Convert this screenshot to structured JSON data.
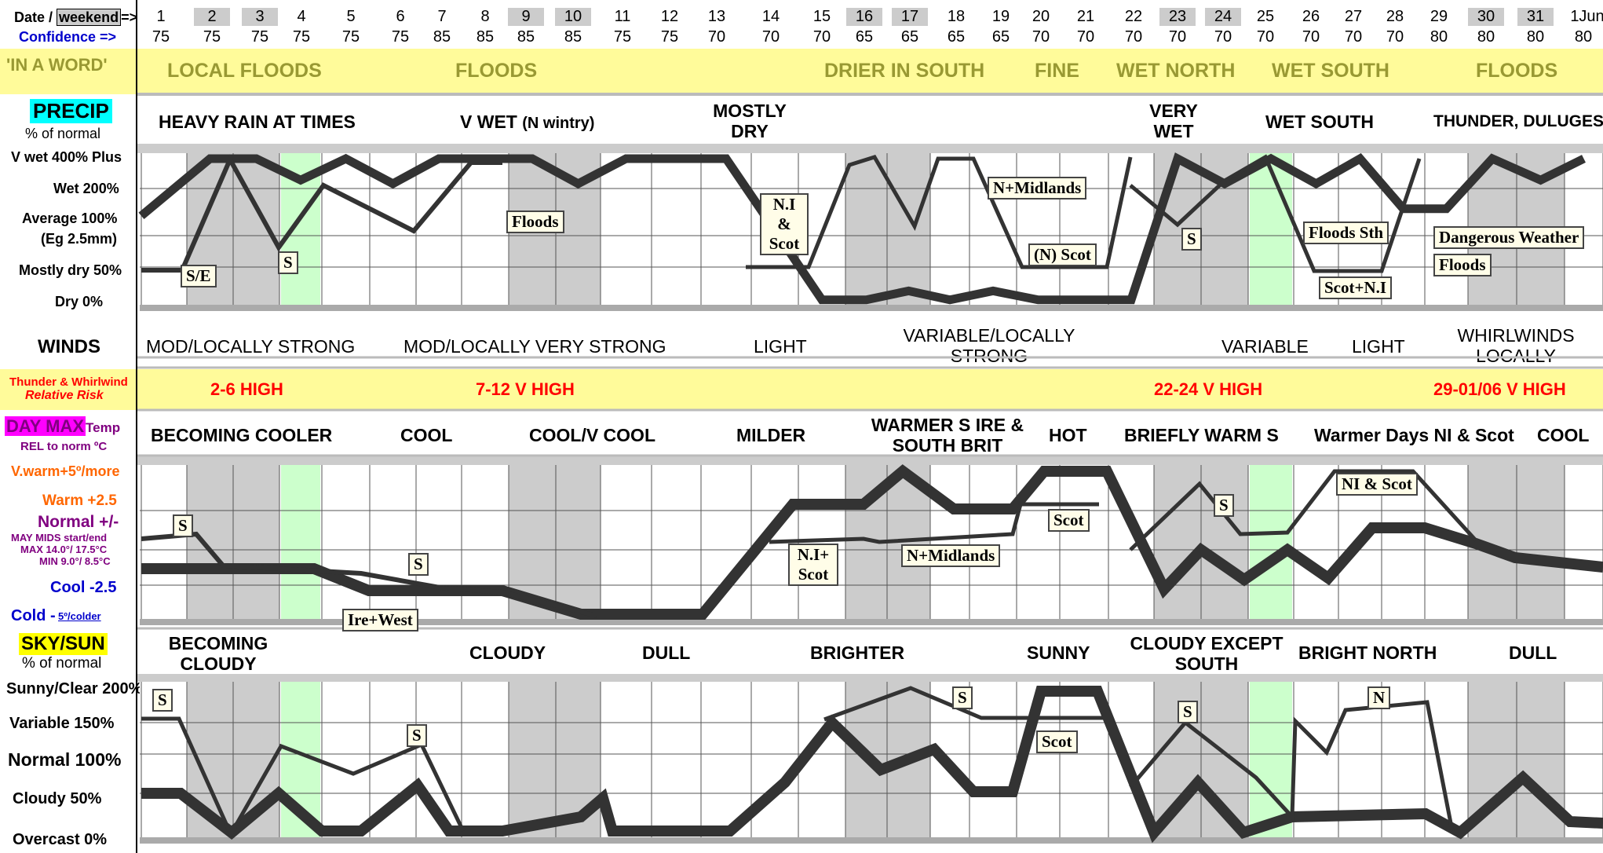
{
  "header": {
    "date_label": "Date / ",
    "weekend_label": "weekend",
    "date_arrow": "=>",
    "confidence_label": "Confidence =>",
    "dates": [
      "1",
      "2",
      "3",
      "4",
      "5",
      "6",
      "7",
      "8",
      "9",
      "10",
      "11",
      "12",
      "13",
      "14",
      "15",
      "16",
      "17",
      "18",
      "19",
      "20",
      "21",
      "22",
      "23",
      "24",
      "25",
      "26",
      "27",
      "28",
      "29",
      "30",
      "31",
      "1Jun"
    ],
    "weekend_dates": [
      "2",
      "3",
      "9",
      "10",
      "16",
      "17",
      "23",
      "24",
      "30",
      "31"
    ],
    "confidence": [
      "75",
      "75",
      "75",
      "75",
      "75",
      "75",
      "85",
      "85",
      "85",
      "85",
      "75",
      "75",
      "70",
      "70",
      "70",
      "65",
      "65",
      "65",
      "65",
      "70",
      "70",
      "70",
      "70",
      "70",
      "70",
      "70",
      "70",
      "70",
      "80",
      "80",
      "80",
      "80"
    ]
  },
  "in_a_word": {
    "label": "'IN A WORD'",
    "items": [
      "LOCAL FLOODS",
      "FLOODS",
      "DRIER IN SOUTH",
      "FINE",
      "WET NORTH",
      "WET SOUTH",
      "FLOODS"
    ]
  },
  "precip": {
    "label": "PRECIP",
    "sublabel": "% of normal",
    "headings": [
      "HEAVY RAIN AT TIMES",
      "V WET ",
      "(N wintry)",
      "MOSTLY DRY",
      "VERY WET",
      "WET SOUTH",
      "THUNDER, DULUGES"
    ],
    "y_labels": [
      "V wet 400% Plus",
      "Wet  200%",
      "Average  100%",
      "(Eg 2.5mm)",
      "Mostly dry 50%",
      "Dry     0%"
    ],
    "annotations": [
      "S/E",
      "S",
      "Floods",
      "N.I & Scot",
      "N+Midlands",
      "(N) Scot",
      "S",
      "Floods Sth",
      "Scot+N.I",
      "Dangerous Weather",
      "Floods"
    ]
  },
  "winds": {
    "label": "WINDS",
    "items": [
      "MOD/LOCALLY STRONG",
      "MOD/LOCALLY VERY STRONG",
      "LIGHT",
      "VARIABLE/LOCALLY STRONG",
      "VARIABLE",
      "LIGHT",
      "WHIRLWINDS LOCALLY"
    ]
  },
  "thunder": {
    "label": "Thunder & Whirlwind",
    "sublabel": "Relative Risk",
    "items": [
      "2-6 HIGH",
      "7-12 V HIGH",
      "22-24 V HIGH",
      "29-01/06 V HIGH"
    ]
  },
  "daymax": {
    "label": "DAY MAX",
    "label_suffix": "Temp",
    "sublabel": "REL to norm ºC",
    "headings": [
      "BECOMING COOLER",
      "COOL",
      "COOL/V COOL",
      "MILDER",
      "WARMER S IRE & SOUTH BRIT",
      "HOT",
      "BRIEFLY WARM S",
      "Warmer Days NI & Scot",
      "COOL"
    ],
    "y_labels": [
      "V.warm+5º/more",
      "Warm +2.5",
      "Normal +/-",
      "MAY MIDS start/end",
      "MAX 14.0°/ 17.5°C",
      "MIN 9.0°/ 8.5°C",
      "Cool -2.5",
      "Cold -",
      "5º/colder"
    ],
    "annotations": [
      "S",
      "S",
      "Ire+West",
      "N.I+ Scot",
      "N+Midlands",
      "Scot",
      "S",
      "NI & Scot"
    ]
  },
  "sky": {
    "label": "SKY/SUN",
    "sublabel": "% of normal",
    "headings": [
      "BECOMING CLOUDY",
      "CLOUDY",
      "DULL",
      "BRIGHTER",
      "SUNNY",
      "CLOUDY EXCEPT SOUTH",
      "BRIGHT NORTH",
      "DULL"
    ],
    "y_labels": [
      "Sunny/Clear 200%",
      "Variable 150%",
      "Normal 100%",
      "Cloudy  50%",
      "Overcast  0%"
    ],
    "annotations": [
      "S",
      "S",
      "S",
      "Scot",
      "S",
      "N"
    ]
  },
  "colors": {
    "weekend": "#cccccc",
    "highlight": "#ccffcc",
    "yellow": "#fffb9a",
    "line": "#333333",
    "red": "#ff0000",
    "purple": "#800080",
    "blue": "#0000cc",
    "orange": "#ff6600",
    "cyan": "#00ffff",
    "magenta": "#ff00ff",
    "yellowlabel": "#ffff00"
  },
  "chart_data": [
    {
      "type": "line",
      "title": "PRECIP",
      "x": [
        1,
        2,
        3,
        4,
        5,
        6,
        7,
        8,
        9,
        10,
        11,
        12,
        13,
        14,
        15,
        16,
        17,
        18,
        19,
        20,
        21,
        22,
        23,
        24,
        25,
        26,
        27,
        28,
        29,
        30,
        31,
        32
      ],
      "series": [
        {
          "values": [
            240,
            400,
            400,
            340,
            400,
            330,
            400,
            400,
            400,
            330,
            400,
            400,
            400,
            200,
            5,
            5,
            30,
            5,
            30,
            5,
            5,
            5,
            400,
            330,
            400,
            330,
            400,
            260,
            260,
            400,
            340,
            400
          ]
        }
      ],
      "ylim": [
        0,
        400
      ]
    }
  ]
}
